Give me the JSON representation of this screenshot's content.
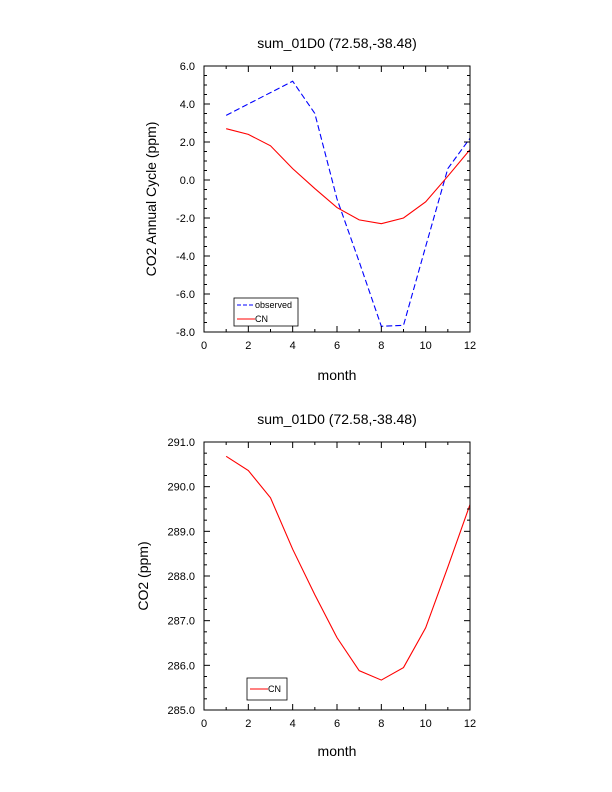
{
  "chart_data": [
    {
      "type": "line",
      "title": "sum_01D0 (72.58,-38.48)",
      "xlabel": "month",
      "ylabel": "CO2 Annual Cycle (ppm)",
      "xlim": [
        0,
        12
      ],
      "ylim": [
        -8,
        6
      ],
      "xticks": [
        0,
        2,
        4,
        6,
        8,
        10,
        12
      ],
      "xtick_labels": [
        "0",
        "2",
        "4",
        "6",
        "8",
        "10",
        "12"
      ],
      "yticks": [
        6,
        4,
        2,
        0,
        -2,
        -4,
        -6,
        -8
      ],
      "ytick_labels": [
        "6.0",
        "4.0",
        "2.0",
        "0.0",
        "-2.0",
        "-4.0",
        "-6.0",
        "-8.0"
      ],
      "legend_position": "bottom-left",
      "series": [
        {
          "name": "observed",
          "color": "#0000ff",
          "dash": "dashed",
          "x": [
            1,
            2,
            3,
            4,
            5,
            6,
            7,
            8,
            9,
            10,
            11,
            12
          ],
          "values": [
            3.4,
            4.0,
            4.6,
            5.2,
            3.5,
            -1.0,
            -4.3,
            -7.7,
            -7.65,
            -3.5,
            0.6,
            2.2
          ]
        },
        {
          "name": "CN",
          "color": "#ff0000",
          "dash": "solid",
          "x": [
            1,
            2,
            3,
            4,
            5,
            6,
            7,
            8,
            9,
            10,
            11,
            12
          ],
          "values": [
            2.7,
            2.4,
            1.8,
            0.6,
            -0.45,
            -1.45,
            -2.1,
            -2.3,
            -2.0,
            -1.15,
            0.2,
            1.6
          ]
        }
      ]
    },
    {
      "type": "line",
      "title": "sum_01D0 (72.58,-38.48)",
      "xlabel": "month",
      "ylabel": "CO2 (ppm)",
      "xlim": [
        0,
        12
      ],
      "ylim": [
        285,
        291
      ],
      "xticks": [
        0,
        2,
        4,
        6,
        8,
        10,
        12
      ],
      "xtick_labels": [
        "0",
        "2",
        "4",
        "6",
        "8",
        "10",
        "12"
      ],
      "yticks": [
        291,
        290,
        289,
        288,
        287,
        286,
        285
      ],
      "ytick_labels": [
        "291.0",
        "290.0",
        "289.0",
        "288.0",
        "287.0",
        "286.0",
        "285.0"
      ],
      "legend_position": "bottom-left",
      "series": [
        {
          "name": "CN",
          "color": "#ff0000",
          "dash": "solid",
          "x": [
            1,
            2,
            3,
            4,
            5,
            6,
            7,
            8,
            9,
            10,
            11,
            12
          ],
          "values": [
            290.68,
            290.36,
            289.75,
            288.6,
            287.58,
            286.62,
            285.88,
            285.67,
            285.95,
            286.84,
            288.2,
            289.6
          ]
        }
      ]
    }
  ]
}
